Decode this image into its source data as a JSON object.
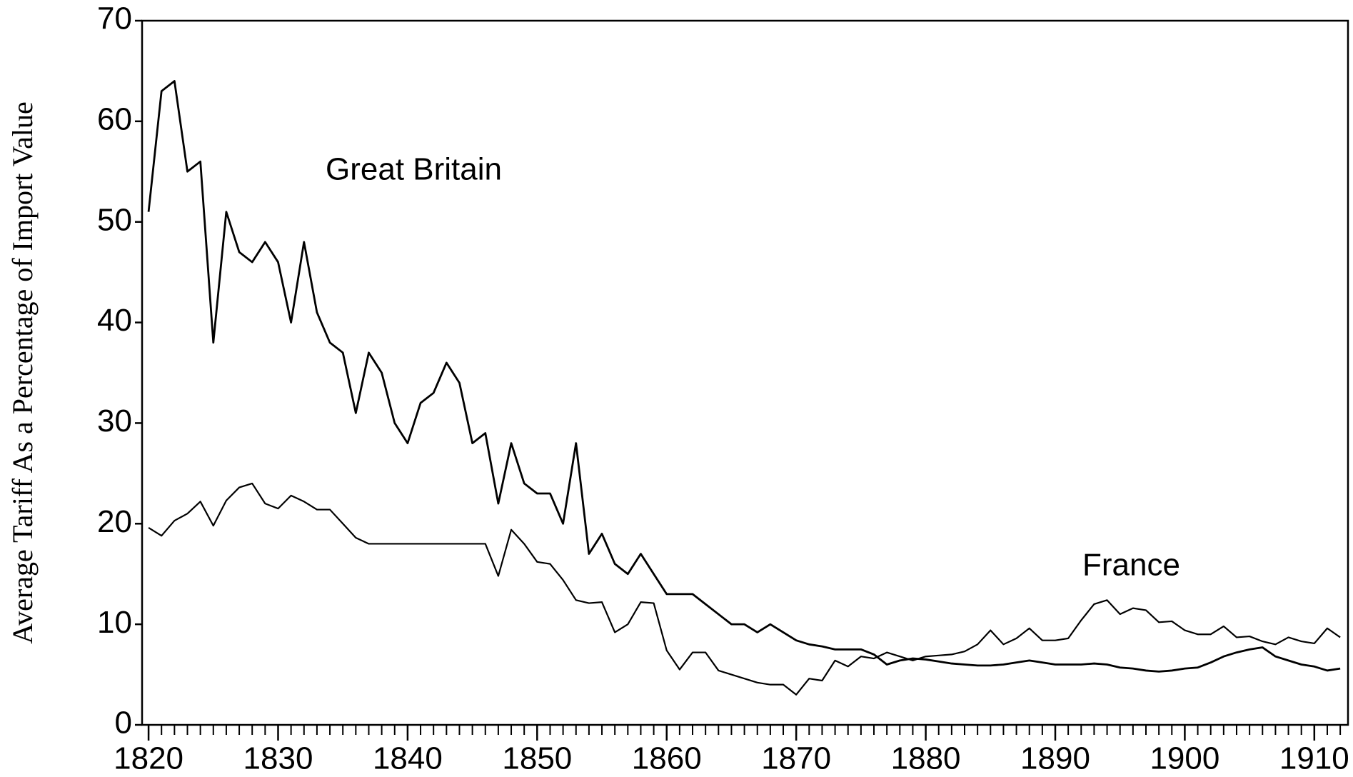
{
  "chart_data": {
    "type": "line",
    "y_label": "Average Tariff As a Percentage of Import Value",
    "x": [
      1820,
      1821,
      1822,
      1823,
      1824,
      1825,
      1826,
      1827,
      1828,
      1829,
      1830,
      1831,
      1832,
      1833,
      1834,
      1835,
      1836,
      1837,
      1838,
      1839,
      1840,
      1841,
      1842,
      1843,
      1844,
      1845,
      1846,
      1847,
      1848,
      1849,
      1850,
      1851,
      1852,
      1853,
      1854,
      1855,
      1856,
      1857,
      1858,
      1859,
      1860,
      1861,
      1862,
      1863,
      1864,
      1865,
      1866,
      1867,
      1868,
      1869,
      1870,
      1871,
      1872,
      1873,
      1874,
      1875,
      1876,
      1877,
      1878,
      1879,
      1880,
      1881,
      1882,
      1883,
      1884,
      1885,
      1886,
      1887,
      1888,
      1889,
      1890,
      1891,
      1892,
      1893,
      1894,
      1895,
      1896,
      1897,
      1898,
      1899,
      1900,
      1901,
      1902,
      1903,
      1904,
      1905,
      1906,
      1907,
      1908,
      1909,
      1910,
      1911,
      1912
    ],
    "series": [
      {
        "name": "Great Britain",
        "color": "#000000",
        "values": [
          51,
          63,
          64,
          55,
          56,
          38,
          51,
          47,
          46,
          48,
          46,
          40,
          48,
          41,
          38,
          37,
          31,
          37,
          35,
          30,
          28,
          32,
          33,
          36,
          34,
          28,
          29,
          22,
          28,
          24,
          23,
          23,
          20,
          28,
          17,
          19,
          16,
          15,
          17,
          15,
          13,
          13,
          13,
          12,
          11,
          10,
          10,
          9.2,
          10,
          9.2,
          8.4,
          8,
          7.8,
          7.5,
          7.5,
          7.5,
          7,
          6,
          6.4,
          6.6,
          6.5,
          6.3,
          6.1,
          6,
          5.9,
          5.9,
          6,
          6.2,
          6.4,
          6.2,
          6,
          6,
          6,
          6.1,
          6,
          5.7,
          5.6,
          5.4,
          5.3,
          5.4,
          5.6,
          5.7,
          6.2,
          6.8,
          7.2,
          7.5,
          7.7,
          6.8,
          6.4,
          6,
          5.8,
          5.4,
          5.6
        ]
      },
      {
        "name": "France",
        "color": "#000000",
        "values": [
          19.6,
          18.8,
          20.3,
          21,
          22.2,
          19.8,
          22.3,
          23.6,
          24,
          22,
          21.5,
          22.8,
          22.2,
          21.4,
          21.4,
          20,
          18.6,
          18,
          18,
          18,
          18,
          18,
          18,
          18,
          18,
          18,
          18,
          14.8,
          19.4,
          18,
          16.2,
          16,
          14.4,
          12.4,
          12.1,
          12.2,
          9.2,
          10,
          12.2,
          12.1,
          7.4,
          5.5,
          7.2,
          7.2,
          5.4,
          5,
          4.6,
          4.2,
          4,
          4,
          3,
          4.6,
          4.4,
          6.4,
          5.8,
          6.8,
          6.6,
          7.2,
          6.8,
          6.4,
          6.8,
          6.9,
          7,
          7.3,
          8,
          9.4,
          8,
          8.6,
          9.6,
          8.4,
          8.4,
          8.6,
          10.4,
          12,
          12.4,
          11,
          11.6,
          11.4,
          10.2,
          10.3,
          9.4,
          9,
          9,
          9.8,
          8.7,
          8.8,
          8.3,
          8,
          8.7,
          8.3,
          8.1,
          9.6,
          8.7
        ]
      }
    ],
    "xlim": [
      1819.5,
      1912.6
    ],
    "xticks": [
      1820,
      1830,
      1840,
      1850,
      1860,
      1870,
      1880,
      1890,
      1900,
      1910
    ],
    "ylim": [
      0,
      70
    ],
    "yticks": [
      0,
      10,
      20,
      30,
      40,
      50,
      60,
      70
    ],
    "grid": false
  }
}
